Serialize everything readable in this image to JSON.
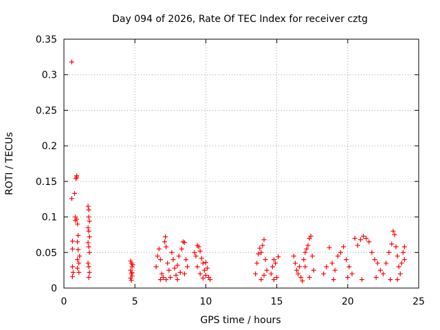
{
  "chart_data": {
    "type": "scatter",
    "title": "Day 094 of 2026, Rate Of TEC Index for receiver cztg",
    "xlabel": "GPS time / hours",
    "ylabel": "ROTI / TECUs",
    "xlim": [
      0,
      25
    ],
    "ylim": [
      0,
      0.35
    ],
    "xticks": [
      0,
      5,
      10,
      15,
      20,
      25
    ],
    "xtick_labels": [
      "0",
      "5",
      "10",
      "15",
      "20",
      "25"
    ],
    "yticks": [
      0,
      0.05,
      0.1,
      0.15,
      0.2,
      0.25,
      0.3,
      0.35
    ],
    "ytick_labels": [
      "0",
      "0.05",
      "0.1",
      "0.15",
      "0.2",
      "0.25",
      "0.3",
      "0.35"
    ],
    "grid": true,
    "marker": "+",
    "color": "#ff0000",
    "series": [
      {
        "name": "ROTI",
        "points": [
          [
            0.55,
            0.318
          ],
          [
            0.55,
            0.126
          ],
          [
            0.6,
            0.066
          ],
          [
            0.6,
            0.055
          ],
          [
            0.6,
            0.03
          ],
          [
            0.6,
            0.016
          ],
          [
            0.65,
            0.022
          ],
          [
            0.75,
            0.133
          ],
          [
            0.8,
            0.1
          ],
          [
            0.8,
            0.095
          ],
          [
            0.85,
            0.154
          ],
          [
            0.9,
            0.158
          ],
          [
            0.9,
            0.156
          ],
          [
            0.9,
            0.097
          ],
          [
            0.95,
            0.09
          ],
          [
            0.95,
            0.065
          ],
          [
            0.95,
            0.04
          ],
          [
            0.95,
            0.028
          ],
          [
            1.0,
            0.074
          ],
          [
            1.0,
            0.054
          ],
          [
            1.05,
            0.035
          ],
          [
            1.05,
            0.022
          ],
          [
            1.1,
            0.045
          ],
          [
            1.7,
            0.115
          ],
          [
            1.75,
            0.11
          ],
          [
            1.75,
            0.1
          ],
          [
            1.8,
            0.094
          ],
          [
            1.7,
            0.085
          ],
          [
            1.75,
            0.08
          ],
          [
            1.8,
            0.072
          ],
          [
            1.7,
            0.064
          ],
          [
            1.75,
            0.058
          ],
          [
            1.8,
            0.05
          ],
          [
            1.7,
            0.035
          ],
          [
            1.75,
            0.03
          ],
          [
            1.8,
            0.022
          ],
          [
            1.75,
            0.015
          ],
          [
            4.7,
            0.038
          ],
          [
            4.75,
            0.035
          ],
          [
            4.8,
            0.03
          ],
          [
            4.7,
            0.025
          ],
          [
            4.75,
            0.02
          ],
          [
            4.8,
            0.017
          ],
          [
            4.7,
            0.014
          ],
          [
            4.75,
            0.011
          ],
          [
            4.8,
            0.022
          ],
          [
            4.85,
            0.033
          ],
          [
            6.5,
            0.03
          ],
          [
            6.6,
            0.045
          ],
          [
            6.7,
            0.055
          ],
          [
            6.8,
            0.04
          ],
          [
            6.9,
            0.02
          ],
          [
            7.0,
            0.015
          ],
          [
            7.1,
            0.065
          ],
          [
            7.15,
            0.072
          ],
          [
            7.2,
            0.058
          ],
          [
            7.3,
            0.035
          ],
          [
            7.4,
            0.025
          ],
          [
            7.5,
            0.015
          ],
          [
            7.6,
            0.05
          ],
          [
            7.7,
            0.04
          ],
          [
            7.8,
            0.028
          ],
          [
            7.9,
            0.018
          ],
          [
            8.0,
            0.032
          ],
          [
            8.1,
            0.045
          ],
          [
            8.2,
            0.022
          ],
          [
            8.3,
            0.055
          ],
          [
            8.4,
            0.065
          ],
          [
            8.5,
            0.064
          ],
          [
            8.6,
            0.04
          ],
          [
            8.5,
            0.02
          ],
          [
            8.7,
            0.03
          ],
          [
            6.8,
            0.012
          ],
          [
            7.2,
            0.012
          ],
          [
            8.0,
            0.012
          ],
          [
            9.2,
            0.05
          ],
          [
            9.3,
            0.045
          ],
          [
            9.4,
            0.06
          ],
          [
            9.5,
            0.058
          ],
          [
            9.6,
            0.052
          ],
          [
            9.7,
            0.042
          ],
          [
            9.8,
            0.035
          ],
          [
            9.9,
            0.025
          ],
          [
            10.0,
            0.018
          ],
          [
            10.1,
            0.028
          ],
          [
            10.2,
            0.015
          ],
          [
            10.3,
            0.012
          ],
          [
            9.4,
            0.03
          ],
          [
            9.6,
            0.02
          ],
          [
            9.8,
            0.014
          ],
          [
            10.0,
            0.036
          ],
          [
            13.5,
            0.02
          ],
          [
            13.6,
            0.035
          ],
          [
            13.7,
            0.048
          ],
          [
            13.8,
            0.056
          ],
          [
            13.9,
            0.05
          ],
          [
            14.0,
            0.06
          ],
          [
            14.1,
            0.068
          ],
          [
            14.2,
            0.04
          ],
          [
            14.3,
            0.025
          ],
          [
            13.9,
            0.012
          ],
          [
            14.1,
            0.018
          ],
          [
            14.6,
            0.02
          ],
          [
            14.7,
            0.03
          ],
          [
            14.8,
            0.04
          ],
          [
            14.9,
            0.035
          ],
          [
            15.0,
            0.015
          ],
          [
            15.1,
            0.044
          ],
          [
            14.8,
            0.012
          ],
          [
            16.2,
            0.045
          ],
          [
            16.3,
            0.035
          ],
          [
            16.4,
            0.025
          ],
          [
            16.5,
            0.02
          ],
          [
            16.6,
            0.03
          ],
          [
            16.7,
            0.015
          ],
          [
            16.9,
            0.04
          ],
          [
            17.0,
            0.05
          ],
          [
            17.1,
            0.055
          ],
          [
            17.2,
            0.06
          ],
          [
            17.3,
            0.07
          ],
          [
            17.4,
            0.073
          ],
          [
            17.5,
            0.045
          ],
          [
            17.6,
            0.025
          ],
          [
            17.3,
            0.015
          ],
          [
            16.8,
            0.01
          ],
          [
            17.0,
            0.03
          ],
          [
            18.3,
            0.02
          ],
          [
            18.5,
            0.03
          ],
          [
            18.7,
            0.057
          ],
          [
            18.9,
            0.035
          ],
          [
            19.1,
            0.025
          ],
          [
            19.3,
            0.045
          ],
          [
            19.5,
            0.05
          ],
          [
            19.7,
            0.058
          ],
          [
            19.9,
            0.04
          ],
          [
            20.1,
            0.03
          ],
          [
            20.3,
            0.02
          ],
          [
            20.5,
            0.07
          ],
          [
            20.7,
            0.06
          ],
          [
            20.9,
            0.068
          ],
          [
            21.1,
            0.073
          ],
          [
            21.3,
            0.07
          ],
          [
            21.5,
            0.065
          ],
          [
            21.7,
            0.05
          ],
          [
            21.9,
            0.04
          ],
          [
            22.1,
            0.035
          ],
          [
            22.3,
            0.025
          ],
          [
            19.0,
            0.012
          ],
          [
            20.0,
            0.015
          ],
          [
            21.0,
            0.012
          ],
          [
            22.0,
            0.015
          ],
          [
            22.5,
            0.02
          ],
          [
            22.7,
            0.035
          ],
          [
            22.9,
            0.05
          ],
          [
            23.1,
            0.062
          ],
          [
            23.2,
            0.08
          ],
          [
            23.3,
            0.075
          ],
          [
            23.4,
            0.058
          ],
          [
            23.5,
            0.045
          ],
          [
            23.6,
            0.03
          ],
          [
            23.7,
            0.02
          ],
          [
            23.8,
            0.035
          ],
          [
            23.9,
            0.05
          ],
          [
            24.0,
            0.058
          ],
          [
            24.0,
            0.04
          ],
          [
            23.0,
            0.012
          ],
          [
            23.5,
            0.012
          ]
        ]
      }
    ]
  }
}
